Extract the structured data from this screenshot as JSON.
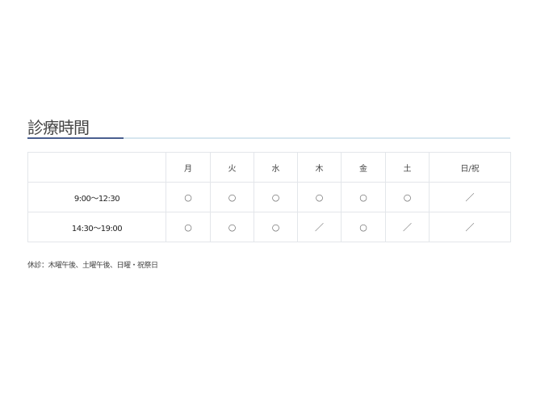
{
  "title": "診療時間",
  "colors": {
    "accent": "#4a5f8f",
    "underline": "#d6e6ef",
    "border": "#e3e6ea"
  },
  "table": {
    "headers": [
      "",
      "月",
      "火",
      "水",
      "木",
      "金",
      "土",
      "日/祝"
    ],
    "rows": [
      {
        "time": "9:00～12:30",
        "cells": [
          "○",
          "○",
          "○",
          "○",
          "○",
          "○",
          "／"
        ]
      },
      {
        "time": "14:30～19:00",
        "cells": [
          "○",
          "○",
          "○",
          "／",
          "○",
          "／",
          "／"
        ]
      }
    ]
  },
  "note": "休診：木曜午後、土曜午後、日曜・祝祭日"
}
